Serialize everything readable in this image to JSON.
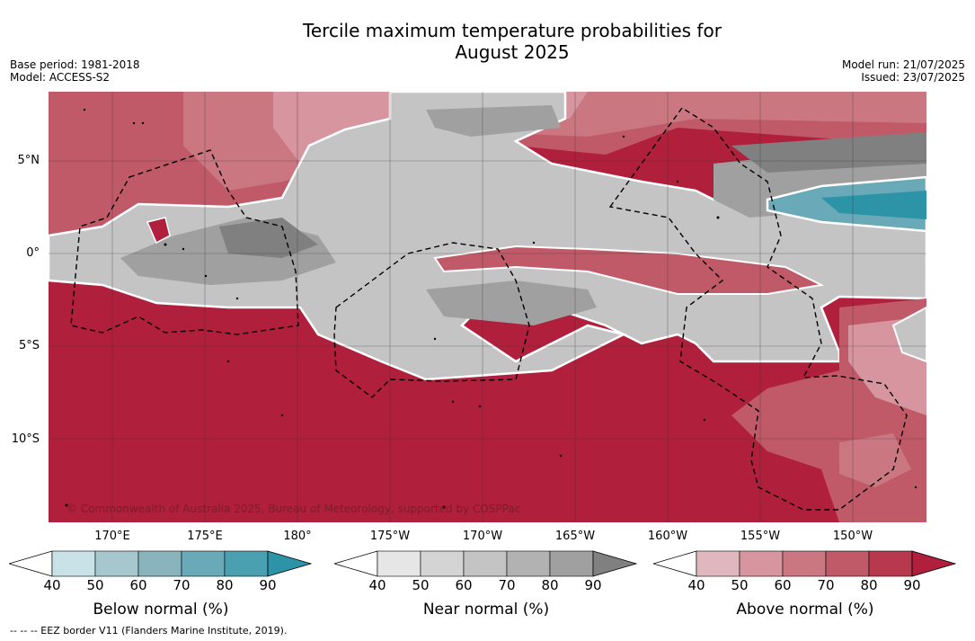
{
  "title_line1": "Tercile maximum temperature probabilities for",
  "title_line2": "August 2025",
  "meta": {
    "base_period": "Base period: 1981-2018",
    "model": "Model: ACCESS-S2",
    "model_run": "Model run: 21/07/2025",
    "issued": "Issued: 23/07/2025"
  },
  "lat_labels": [
    "5°N",
    "0°",
    "5°S",
    "10°S"
  ],
  "lon_labels": [
    "170°E",
    "175°E",
    "180°",
    "175°W",
    "170°W",
    "165°W",
    "160°W",
    "155°W",
    "150°W"
  ],
  "copyright": "© Commonwealth of Australia 2025, Bureau of Meteorology, supported by COSPPac",
  "footnote": "--  --  -- EEZ border V11 (Flanders Marine Institute, 2019).",
  "colorbars": [
    {
      "title": "Below normal (%)",
      "ticks": [
        "40",
        "50",
        "60",
        "70",
        "80",
        "90"
      ],
      "colors": [
        "#c9e2e8",
        "#a6c7cd",
        "#89b4be",
        "#6aa9b7",
        "#4a9fb0",
        "#2d93a6"
      ]
    },
    {
      "title": "Near normal (%)",
      "ticks": [
        "40",
        "50",
        "60",
        "70",
        "80",
        "90"
      ],
      "colors": [
        "#e6e6e6",
        "#d4d4d4",
        "#c4c4c4",
        "#b2b2b2",
        "#a0a0a0",
        "#808080"
      ]
    },
    {
      "title": "Above normal (%)",
      "ticks": [
        "40",
        "50",
        "60",
        "70",
        "80",
        "90"
      ],
      "colors": [
        "#e1b7be",
        "#d6959f",
        "#ca7782",
        "#c05a68",
        "#b8394d",
        "#b01f3c"
      ]
    }
  ]
}
